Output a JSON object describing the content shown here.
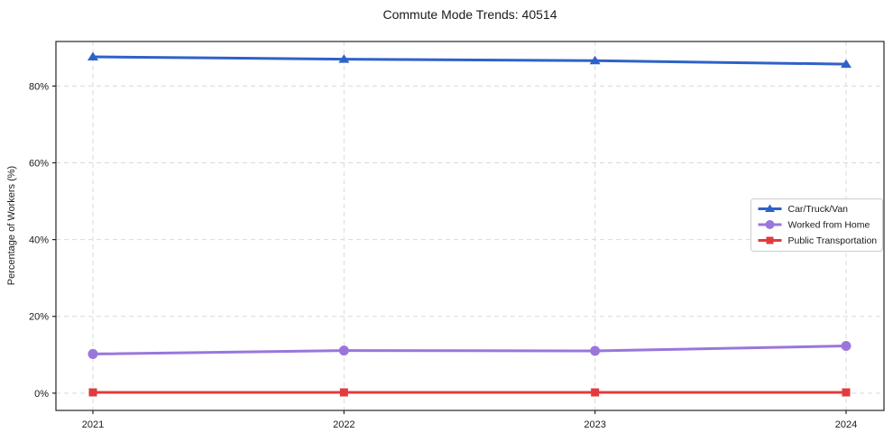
{
  "chart_data": {
    "type": "line",
    "title": "Commute Mode Trends: 40514",
    "xlabel": "",
    "ylabel": "Percentage of Workers (%)",
    "categories": [
      "2021",
      "2022",
      "2023",
      "2024"
    ],
    "series": [
      {
        "name": "Car/Truck/Van",
        "color": "#2f62c8",
        "marker": "triangle",
        "values": [
          87.6,
          87.0,
          86.6,
          85.7
        ]
      },
      {
        "name": "Worked from Home",
        "color": "#9a76dc",
        "marker": "circle",
        "values": [
          10.2,
          11.1,
          11.0,
          12.3
        ]
      },
      {
        "name": "Public Transportation",
        "color": "#e23b3e",
        "marker": "square",
        "values": [
          0.2,
          0.2,
          0.2,
          0.2
        ]
      }
    ],
    "yticks": [
      {
        "value": 0,
        "label": "0%"
      },
      {
        "value": 20,
        "label": "20%"
      },
      {
        "value": 40,
        "label": "40%"
      },
      {
        "value": 60,
        "label": "60%"
      },
      {
        "value": 80,
        "label": "80%"
      }
    ],
    "ylim": [
      -4.5,
      91.6
    ],
    "grid": true,
    "grid_style": "dashed",
    "grid_color": "#d9d9d9",
    "spine_color": "#262626",
    "legend_position": "center-right",
    "legend_border_color": "#cccccc"
  }
}
